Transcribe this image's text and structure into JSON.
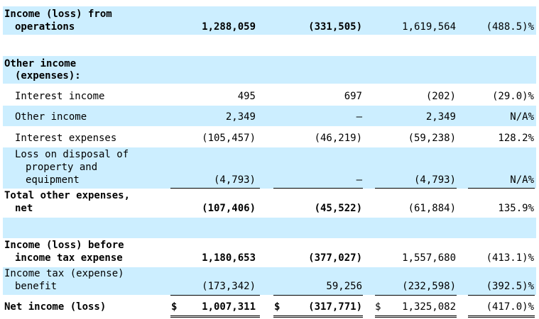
{
  "rows": {
    "income_ops": {
      "label1": "Income (loss) from",
      "label2": "operations",
      "c1": "1,288,059",
      "c2": "(331,505)",
      "c3": "1,619,564",
      "c4": "(488.5)%"
    },
    "other_header": {
      "label1": "Other income",
      "label2": "(expenses):"
    },
    "interest_income": {
      "label": "Interest income",
      "c1": "495",
      "c2": "697",
      "c3": "(202)",
      "c4": "(29.0)%"
    },
    "other_income": {
      "label": "Other income",
      "c1": "2,349",
      "c2": "—",
      "c3": "2,349",
      "c4": "N/A%"
    },
    "interest_expenses": {
      "label": "Interest expenses",
      "c1": "(105,457)",
      "c2": "(46,219)",
      "c3": "(59,238)",
      "c4": "128.2%"
    },
    "loss_disposal": {
      "label1": "Loss on disposal of",
      "label2": "property and",
      "label3": "equipment",
      "c1": "(4,793)",
      "c2": "—",
      "c3": "(4,793)",
      "c4": "N/A%"
    },
    "total_other": {
      "label1": "Total other expenses,",
      "label2": "net",
      "c1": "(107,406)",
      "c2": "(45,522)",
      "c3": "(61,884)",
      "c4": "135.9%"
    },
    "income_before_tax": {
      "label1": "Income (loss) before",
      "label2": "income tax expense",
      "c1": "1,180,653",
      "c2": "(377,027)",
      "c3": "1,557,680",
      "c4": "(413.1)%"
    },
    "income_tax": {
      "label1": "Income tax (expense)",
      "label2": "benefit",
      "c1": "(173,342)",
      "c2": "59,256",
      "c3": "(232,598)",
      "c4": "(392.5)%"
    },
    "net_income": {
      "label": "Net income (loss)",
      "currency": "$",
      "c1": "1,007,311",
      "c2": "(317,771)",
      "c3": "1,325,082",
      "c4": "(417.0)%"
    }
  }
}
